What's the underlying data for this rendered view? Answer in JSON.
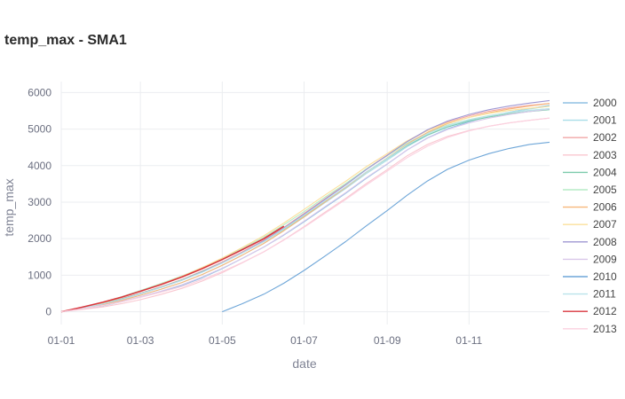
{
  "chart_data": {
    "type": "line",
    "title": "temp_max - SMA1",
    "xlabel": "date",
    "ylabel": "temp_max",
    "x_ticks": [
      "01-01",
      "01-03",
      "01-05",
      "01-07",
      "01-09",
      "01-11"
    ],
    "x_tick_days": [
      0,
      59,
      120,
      181,
      243,
      304
    ],
    "xlim_days": [
      0,
      364
    ],
    "y_ticks": [
      0,
      1000,
      2000,
      3000,
      4000,
      5000,
      6000
    ],
    "ylim": [
      -350,
      6300
    ],
    "grid": true,
    "legend_position": "right",
    "x_day_points": [
      0,
      15,
      31,
      45,
      59,
      74,
      90,
      105,
      120,
      135,
      151,
      166,
      181,
      196,
      212,
      227,
      243,
      258,
      273,
      288,
      304,
      319,
      334,
      349,
      364
    ],
    "series": [
      {
        "name": "2000",
        "color": "#8fc1e3",
        "values": [
          0,
          70,
          160,
          270,
          400,
          540,
          720,
          930,
          1180,
          1460,
          1770,
          2100,
          2460,
          2840,
          3240,
          3640,
          4040,
          4430,
          4760,
          5010,
          5200,
          5350,
          5460,
          5560,
          5650
        ]
      },
      {
        "name": "2001",
        "color": "#a9dde8",
        "values": [
          0,
          90,
          190,
          310,
          450,
          610,
          800,
          1020,
          1270,
          1550,
          1870,
          2220,
          2590,
          2970,
          3370,
          3770,
          4150,
          4520,
          4830,
          5060,
          5230,
          5360,
          5460,
          5550,
          5630
        ]
      },
      {
        "name": "2002",
        "color": "#f1a6a6",
        "values": [
          0,
          110,
          230,
          360,
          510,
          680,
          880,
          1110,
          1360,
          1640,
          1960,
          2310,
          2690,
          3080,
          3490,
          3900,
          4290,
          4660,
          4960,
          5190,
          5360,
          5490,
          5580,
          5650,
          5700
        ]
      },
      {
        "name": "2003",
        "color": "#f9c7d0",
        "values": [
          0,
          60,
          130,
          220,
          330,
          470,
          640,
          840,
          1070,
          1340,
          1640,
          1970,
          2330,
          2710,
          3100,
          3500,
          3890,
          4270,
          4580,
          4800,
          4960,
          5080,
          5170,
          5240,
          5300
        ]
      },
      {
        "name": "2004",
        "color": "#7ccbac",
        "values": [
          0,
          100,
          220,
          350,
          500,
          670,
          870,
          1100,
          1340,
          1610,
          1920,
          2260,
          2630,
          3010,
          3410,
          3810,
          4190,
          4550,
          4840,
          5060,
          5220,
          5330,
          5420,
          5480,
          5530
        ]
      },
      {
        "name": "2005",
        "color": "#b6ecc6",
        "values": [
          0,
          120,
          260,
          410,
          580,
          770,
          980,
          1210,
          1460,
          1730,
          2040,
          2380,
          2740,
          3120,
          3510,
          3900,
          4270,
          4620,
          4900,
          5110,
          5260,
          5370,
          5450,
          5510,
          5560
        ]
      },
      {
        "name": "2006",
        "color": "#f7b77a",
        "values": [
          0,
          90,
          190,
          310,
          450,
          610,
          800,
          1020,
          1270,
          1550,
          1870,
          2220,
          2600,
          2990,
          3400,
          3810,
          4210,
          4590,
          4910,
          5150,
          5320,
          5450,
          5550,
          5630,
          5700
        ]
      },
      {
        "name": "2007",
        "color": "#fbe09b",
        "values": [
          0,
          110,
          240,
          390,
          560,
          750,
          970,
          1210,
          1470,
          1760,
          2080,
          2430,
          2800,
          3180,
          3570,
          3960,
          4330,
          4680,
          4960,
          5170,
          5320,
          5430,
          5510,
          5570,
          5620
        ]
      },
      {
        "name": "2008",
        "color": "#9f97d3",
        "values": [
          0,
          100,
          210,
          340,
          490,
          660,
          860,
          1090,
          1340,
          1620,
          1940,
          2290,
          2670,
          3060,
          3470,
          3880,
          4280,
          4660,
          4980,
          5220,
          5400,
          5530,
          5630,
          5710,
          5780
        ]
      },
      {
        "name": "2009",
        "color": "#d9c7ea",
        "values": [
          0,
          80,
          170,
          280,
          410,
          560,
          740,
          950,
          1190,
          1460,
          1770,
          2110,
          2480,
          2860,
          3260,
          3660,
          4050,
          4430,
          4750,
          4990,
          5170,
          5300,
          5400,
          5480,
          5550
        ]
      },
      {
        "name": "2010",
        "color": "#6ea6d8",
        "values": [
          null,
          null,
          null,
          null,
          null,
          null,
          null,
          null,
          0,
          220,
          480,
          780,
          1130,
          1510,
          1920,
          2340,
          2770,
          3190,
          3580,
          3900,
          4150,
          4330,
          4470,
          4580,
          4640
        ]
      },
      {
        "name": "2011",
        "color": "#b9e2ea",
        "values": [
          0,
          100,
          210,
          340,
          490,
          660,
          860,
          1080,
          1330,
          1610,
          1920,
          2270,
          2640,
          3020,
          3420,
          3820,
          4200,
          4570,
          4870,
          5090,
          5250,
          5360,
          5450,
          5510,
          5560
        ]
      },
      {
        "name": "2012",
        "color": "#d9363e",
        "values": [
          0,
          120,
          260,
          400,
          560,
          740,
          950,
          1180,
          1430,
          1700,
          2000,
          2340,
          null,
          null,
          null,
          null,
          null,
          null,
          null,
          null,
          null,
          null,
          null,
          null,
          null
        ]
      },
      {
        "name": "2013",
        "color": "#fbd0df",
        "values": [
          0,
          80,
          170,
          270,
          390,
          530,
          690,
          880,
          1100,
          1350,
          1640,
          1960,
          2310,
          2680,
          3070,
          3460,
          3850,
          4220,
          4530,
          4770,
          4950,
          5080,
          5170,
          5240,
          5300
        ]
      }
    ]
  }
}
